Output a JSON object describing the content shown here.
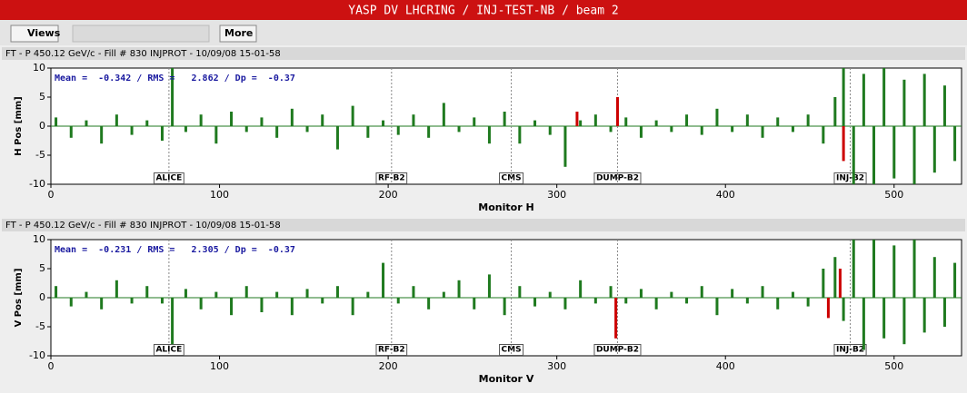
{
  "window": {
    "title": "YASP DV LHCRING / INJ-TEST-NB / beam 2"
  },
  "toolbar": {
    "views": "Views",
    "more": "More"
  },
  "panels": [
    {
      "header": "FT - P 450.12 GeV/c - Fill # 830 INJPROT - 10/09/08 15-01-58",
      "chart": {
        "type": "bar",
        "xlabel": "Monitor H",
        "ylabel": "H Pos [mm]",
        "annotation": "Mean =  -0.342 / RMS =   2.862 / Dp =  -0.37",
        "xlim": [
          0,
          540
        ],
        "xticks": [
          0,
          100,
          200,
          300,
          400,
          500
        ],
        "ylim": [
          -10,
          10
        ],
        "yticks": [
          -10,
          -5,
          0,
          5,
          10
        ],
        "color": "#1f7a1f",
        "x": [
          3,
          12,
          21,
          30,
          39,
          48,
          57,
          66,
          72,
          80,
          89,
          98,
          107,
          116,
          125,
          134,
          143,
          152,
          161,
          170,
          179,
          188,
          197,
          206,
          215,
          224,
          233,
          242,
          251,
          260,
          269,
          278,
          287,
          296,
          305,
          314,
          323,
          332,
          341,
          350,
          359,
          368,
          377,
          386,
          395,
          404,
          413,
          422,
          431,
          440,
          449,
          458,
          465,
          470,
          476,
          482,
          488,
          494,
          500,
          506,
          512,
          518,
          524,
          530,
          536
        ],
        "values": [
          1.5,
          -2,
          1,
          -3,
          2,
          -1.5,
          1,
          -2.5,
          10,
          -1,
          2,
          -3,
          2.5,
          -1,
          1.5,
          -2,
          3,
          -1,
          2,
          -4,
          3.5,
          -2,
          1,
          -1.5,
          2,
          -2,
          4,
          -1,
          1.5,
          -3,
          2.5,
          -3,
          1,
          -1.5,
          -7,
          1,
          2,
          -1,
          1.5,
          -2,
          1,
          -1,
          2,
          -1.5,
          3,
          -1,
          2,
          -2,
          1.5,
          -1,
          2,
          -3,
          5,
          10,
          -10,
          9,
          -10,
          10,
          -9,
          8,
          -10,
          9,
          -8,
          7,
          -6
        ],
        "flagged": {
          "color": "#cc0000",
          "x": [
            312,
            336,
            470
          ],
          "values": [
            2.5,
            5,
            -6
          ]
        },
        "markers": [
          {
            "label": "ALICE",
            "x": 70
          },
          {
            "label": "RF-B2",
            "x": 202
          },
          {
            "label": "CMS",
            "x": 273
          },
          {
            "label": "DUMP-B2",
            "x": 336
          },
          {
            "label": "INJ-B2",
            "x": 474
          }
        ]
      }
    },
    {
      "header": "FT - P 450.12 GeV/c - Fill # 830 INJPROT - 10/09/08 15-01-58",
      "chart": {
        "type": "bar",
        "xlabel": "Monitor V",
        "ylabel": "V Pos [mm]",
        "annotation": "Mean =  -0.231 / RMS =   2.305 / Dp =  -0.37",
        "xlim": [
          0,
          540
        ],
        "xticks": [
          0,
          100,
          200,
          300,
          400,
          500
        ],
        "ylim": [
          -10,
          10
        ],
        "yticks": [
          -10,
          -5,
          0,
          5,
          10
        ],
        "color": "#1f7a1f",
        "x": [
          3,
          12,
          21,
          30,
          39,
          48,
          57,
          66,
          72,
          80,
          89,
          98,
          107,
          116,
          125,
          134,
          143,
          152,
          161,
          170,
          179,
          188,
          197,
          206,
          215,
          224,
          233,
          242,
          251,
          260,
          269,
          278,
          287,
          296,
          305,
          314,
          323,
          332,
          341,
          350,
          359,
          368,
          377,
          386,
          395,
          404,
          413,
          422,
          431,
          440,
          449,
          458,
          465,
          470,
          476,
          482,
          488,
          494,
          500,
          506,
          512,
          518,
          524,
          530,
          536
        ],
        "values": [
          2,
          -1.5,
          1,
          -2,
          3,
          -1,
          2,
          -1,
          -8,
          1.5,
          -2,
          1,
          -3,
          2,
          -2.5,
          1,
          -3,
          1.5,
          -1,
          2,
          -3,
          1,
          6,
          -1,
          2,
          -2,
          1,
          3,
          -2,
          4,
          -3,
          2,
          -1.5,
          1,
          -2,
          3,
          -1,
          2,
          -1,
          1.5,
          -2,
          1,
          -1,
          2,
          -3,
          1.5,
          -1,
          2,
          -2,
          1,
          -1.5,
          5,
          7,
          -4,
          10,
          -9,
          10,
          -7,
          9,
          -8,
          10,
          -6,
          7,
          -5,
          6
        ],
        "flagged": {
          "color": "#cc0000",
          "x": [
            335,
            461,
            468
          ],
          "values": [
            -7,
            -3.5,
            5
          ]
        },
        "markers": [
          {
            "label": "ALICE",
            "x": 70
          },
          {
            "label": "RF-B2",
            "x": 202
          },
          {
            "label": "CMS",
            "x": 273
          },
          {
            "label": "DUMP-B2",
            "x": 336
          },
          {
            "label": "INJ-B2",
            "x": 474
          }
        ]
      }
    }
  ]
}
